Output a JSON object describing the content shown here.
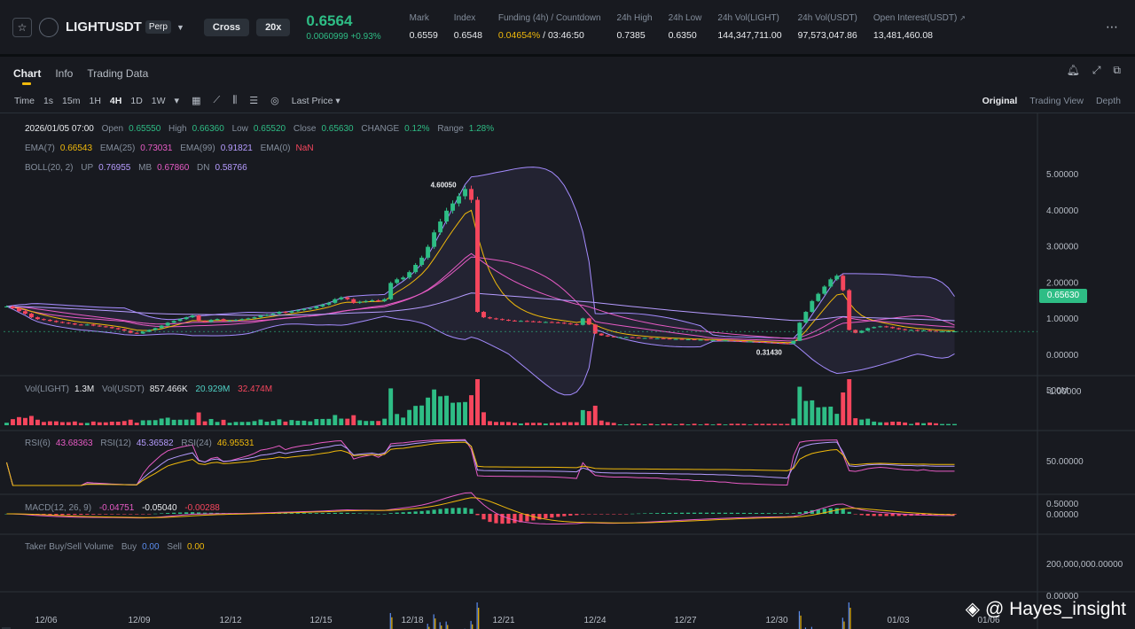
{
  "header": {
    "symbol": "LIGHTUSDT",
    "badge": "Perp",
    "margin_mode": "Cross",
    "leverage": "20x",
    "last_price": "0.6564",
    "price_change": "0.0060999 +0.93%",
    "stats": [
      {
        "label": "Mark",
        "value": "0.6559"
      },
      {
        "label": "Index",
        "value": "0.6548"
      },
      {
        "label": "Funding (4h) / Countdown",
        "value_highlight": "0.04654%",
        "value": " / 03:46:50"
      },
      {
        "label": "24h High",
        "value": "0.7385"
      },
      {
        "label": "24h Low",
        "value": "0.6350"
      },
      {
        "label": "24h Vol(LIGHT)",
        "value": "144,347,711.00"
      },
      {
        "label": "24h Vol(USDT)",
        "value": "97,573,047.86"
      },
      {
        "label": "Open Interest(USDT)",
        "value": "13,481,460.08"
      }
    ]
  },
  "tabs": [
    "Chart",
    "Info",
    "Trading Data"
  ],
  "toolbar": {
    "time_label": "Time",
    "intervals": [
      "1s",
      "15m",
      "1H",
      "4H",
      "1D",
      "1W"
    ],
    "active_interval": "4H",
    "last_price_label": "Last Price",
    "views": [
      "Original",
      "Trading View",
      "Depth"
    ]
  },
  "legend": {
    "ohlc": {
      "date": "2026/01/05 07:00",
      "open_label": "Open",
      "open": "0.65550",
      "high_label": "High",
      "high": "0.66360",
      "low_label": "Low",
      "low": "0.65520",
      "close_label": "Close",
      "close": "0.65630",
      "change_label": "CHANGE",
      "change": "0.12%",
      "range_label": "Range",
      "range": "1.28%"
    },
    "ema": {
      "ema7_label": "EMA(7)",
      "ema7": "0.66543",
      "ema25_label": "EMA(25)",
      "ema25": "0.73031",
      "ema99_label": "EMA(99)",
      "ema99": "0.91821",
      "ema0_label": "EMA(0)",
      "ema0": "NaN"
    },
    "boll": {
      "label": "BOLL(20, 2)",
      "up_label": "UP",
      "up": "0.76955",
      "mb_label": "MB",
      "mb": "0.67860",
      "dn_label": "DN",
      "dn": "0.58766"
    },
    "vol": {
      "light_label": "Vol(LIGHT)",
      "light": "1.3M",
      "usdt_label": "Vol(USDT)",
      "usdt": "857.466K",
      "ma1": "20.929M",
      "ma2": "32.474M"
    },
    "rsi": {
      "rsi6_label": "RSI(6)",
      "rsi6": "43.68363",
      "rsi12_label": "RSI(12)",
      "rsi12": "45.36582",
      "rsi24_label": "RSI(24)",
      "rsi24": "46.95531"
    },
    "macd": {
      "label": "MACD(12, 26, 9)",
      "dif": "-0.04751",
      "dea": "-0.05040",
      "hist": "-0.00288"
    },
    "taker": {
      "label": "Taker Buy/Sell Volume",
      "buy_label": "Buy",
      "buy": "0.00",
      "sell_label": "Sell",
      "sell": "0.00"
    }
  },
  "price_tag": "0.65630",
  "watermark": "@ Hayes_insight",
  "chart_data": {
    "type": "candlestick",
    "x_ticks": [
      "12/06",
      "12/09",
      "12/12",
      "12/15",
      "12/18",
      "12/21",
      "12/24",
      "12/27",
      "12/30",
      "01/03",
      "01/06"
    ],
    "price_axis": [
      "5.00000",
      "4.00000",
      "3.00000",
      "2.00000",
      "1.00000",
      "0.00000",
      "-1.00000"
    ],
    "price_annotations": {
      "high": "4.60050",
      "low": "0.31430"
    },
    "vol_axis": [
      "500M"
    ],
    "rsi_axis": [
      "50.00000"
    ],
    "macd_axis": [
      "0.50000",
      "0.00000"
    ],
    "taker_axis": [
      "200,000,000.00000",
      "0.00000"
    ],
    "close_series": [
      1.35,
      1.3,
      1.22,
      1.15,
      1.05,
      1.0,
      0.98,
      0.95,
      0.92,
      0.9,
      0.88,
      0.85,
      0.84,
      0.85,
      0.82,
      0.8,
      0.78,
      0.75,
      0.72,
      0.68,
      0.62,
      0.6,
      0.65,
      0.7,
      0.75,
      0.82,
      0.9,
      0.95,
      1.0,
      1.05,
      1.1,
      0.95,
      0.92,
      0.98,
      1.0,
      0.95,
      0.96,
      0.98,
      1.0,
      1.02,
      1.05,
      1.1,
      1.12,
      1.15,
      1.2,
      1.18,
      1.22,
      1.25,
      1.28,
      1.3,
      1.35,
      1.4,
      1.45,
      1.55,
      1.6,
      1.55,
      1.45,
      1.48,
      1.5,
      1.52,
      1.5,
      1.55,
      2.0,
      2.1,
      2.15,
      2.3,
      2.5,
      2.7,
      3.0,
      3.4,
      3.7,
      4.0,
      4.2,
      4.4,
      4.6,
      4.3,
      1.2,
      1.05,
      1.02,
      1.0,
      0.98,
      0.96,
      0.95,
      0.95,
      0.94,
      0.93,
      0.92,
      0.92,
      0.91,
      0.9,
      0.88,
      0.86,
      0.84,
      1.02,
      0.85,
      0.6,
      0.55,
      0.52,
      0.5,
      0.5,
      0.5,
      0.49,
      0.48,
      0.48,
      0.47,
      0.47,
      0.46,
      0.45,
      0.45,
      0.44,
      0.44,
      0.43,
      0.43,
      0.42,
      0.42,
      0.41,
      0.41,
      0.4,
      0.39,
      0.38,
      0.38,
      0.37,
      0.36,
      0.35,
      0.34,
      0.33,
      0.32,
      0.4,
      0.9,
      1.2,
      1.5,
      1.7,
      1.9,
      2.1,
      2.2,
      1.8,
      0.7,
      0.62,
      0.68,
      0.75,
      0.78,
      0.8,
      0.78,
      0.75,
      0.72,
      0.7,
      0.7,
      0.68,
      0.69,
      0.67,
      0.66,
      0.66,
      0.66,
      0.66
    ]
  }
}
